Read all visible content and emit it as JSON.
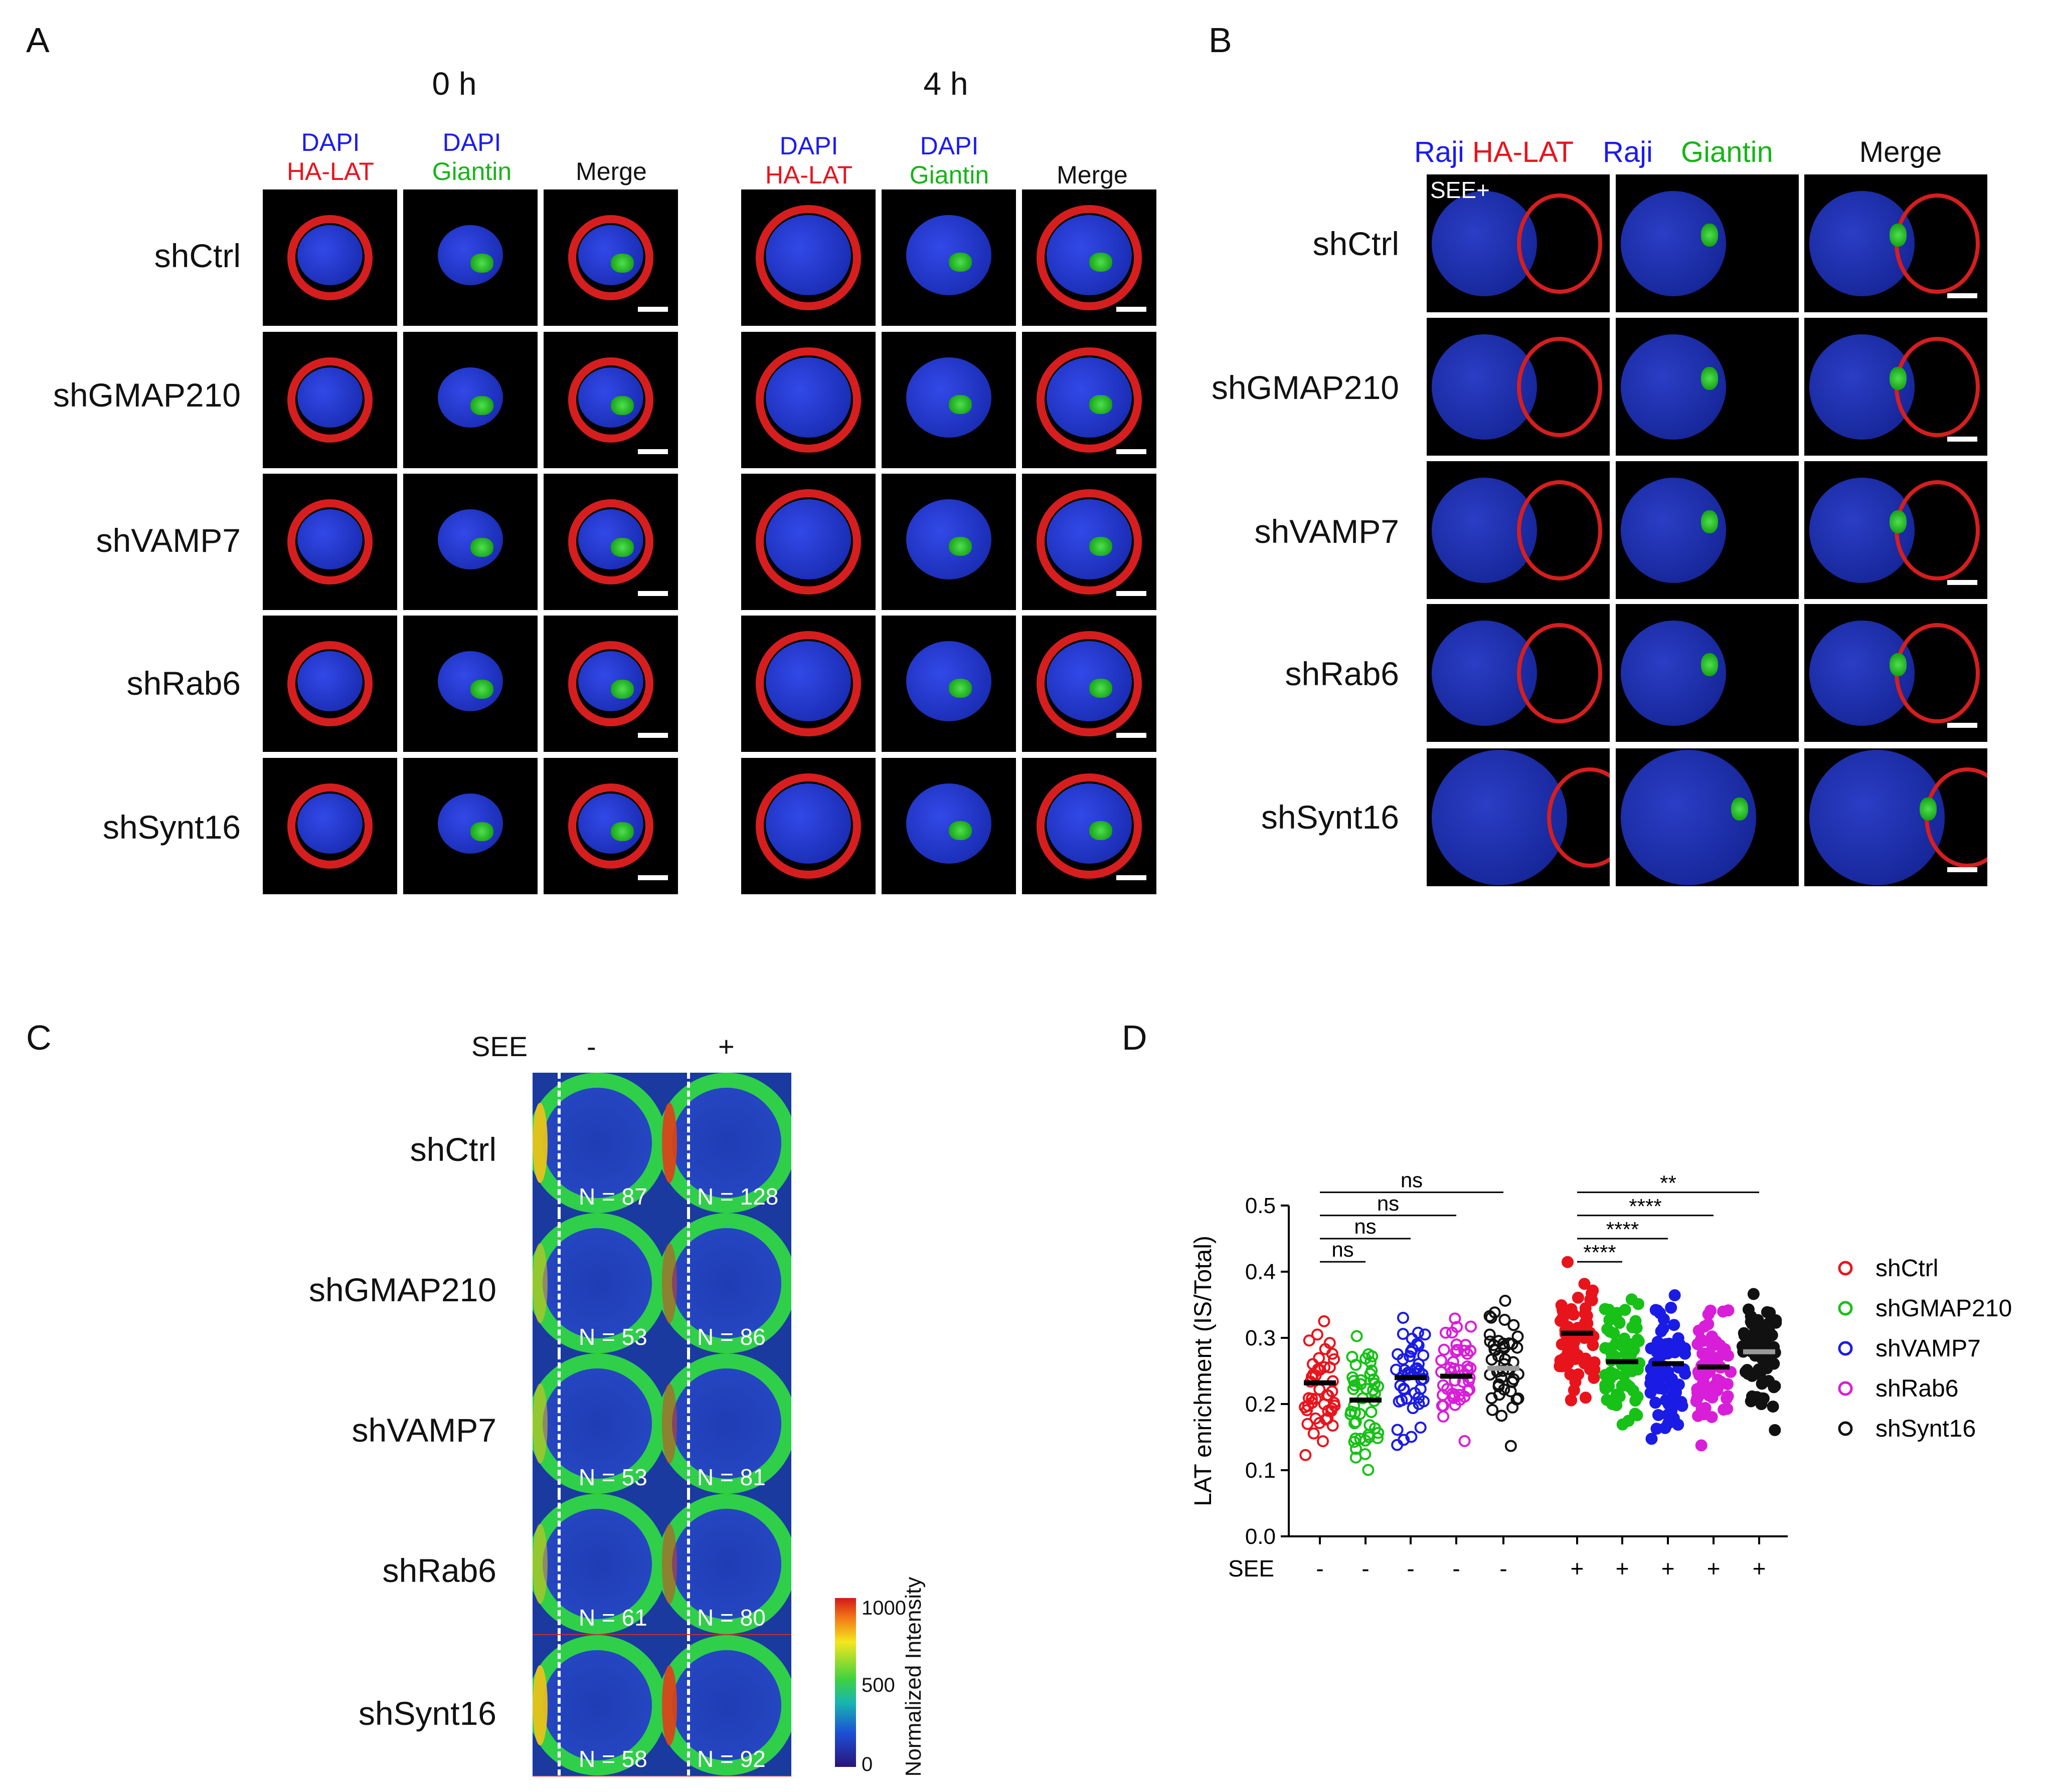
{
  "panels": {
    "a": "A",
    "b": "B",
    "c": "C",
    "d": "D"
  },
  "rows": [
    "shCtrl",
    "shGMAP210",
    "shVAMP7",
    "shRab6",
    "shSynt16"
  ],
  "panel_a": {
    "time_0": "0 h",
    "time_4": "4 h",
    "col1_line1": "DAPI",
    "col1_line2": "HA-LAT",
    "col2_line1": "DAPI",
    "col2_line2": "Giantin",
    "col3": "Merge"
  },
  "panel_b": {
    "col1_a": "Raji",
    "col1_b": "HA-LAT",
    "col2_a": "Raji",
    "col2_b": "Giantin",
    "col3": "Merge",
    "see_tag": "SEE+"
  },
  "panel_c": {
    "see_label": "SEE",
    "minus": "-",
    "plus": "+",
    "counts_minus": [
      "N = 87",
      "N = 53",
      "N = 53",
      "N = 61",
      "N = 58"
    ],
    "counts_plus": [
      "N = 128",
      "N = 86",
      "N = 81",
      "N = 80",
      "N = 92"
    ],
    "colorbar_label": "Normalized Intensity",
    "colorbar_ticks": [
      "1000",
      "500",
      "0"
    ]
  },
  "chart_data": {
    "type": "scatter",
    "title": "",
    "ylabel": "LAT enrichment (IS/Total)",
    "xlabel": "SEE",
    "ylim": [
      0.0,
      0.5
    ],
    "yticks": [
      "0.0",
      "0.1",
      "0.2",
      "0.3",
      "0.4",
      "0.5"
    ],
    "x_tick_labels": [
      "-",
      "-",
      "-",
      "-",
      "-",
      "+",
      "+",
      "+",
      "+",
      "+"
    ],
    "series": [
      {
        "name": "shCtrl",
        "color": "#e8141c",
        "see_minus_mean": 0.232,
        "see_plus_mean": 0.307
      },
      {
        "name": "shGMAP210",
        "color": "#17c117",
        "see_minus_mean": 0.206,
        "see_plus_mean": 0.264
      },
      {
        "name": "shVAMP7",
        "color": "#1b1be6",
        "see_minus_mean": 0.24,
        "see_plus_mean": 0.261
      },
      {
        "name": "shRab6",
        "color": "#d81ed8",
        "see_minus_mean": 0.242,
        "see_plus_mean": 0.256
      },
      {
        "name": "shSynt16",
        "color": "#111111",
        "see_minus_mean": 0.254,
        "see_plus_mean": 0.279
      }
    ],
    "significance_minus": [
      "ns",
      "ns",
      "ns",
      "ns"
    ],
    "significance_plus": [
      "****",
      "****",
      "****",
      "**"
    ],
    "legend": [
      "shCtrl",
      "shGMAP210",
      "shVAMP7",
      "shRab6",
      "shSynt16"
    ],
    "legend_position": "right"
  }
}
